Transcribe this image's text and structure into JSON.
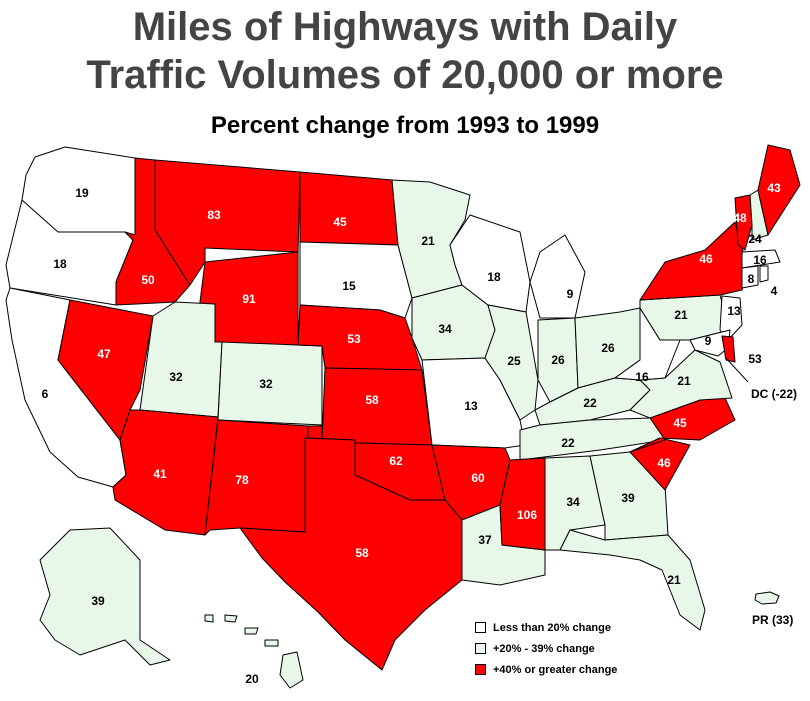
{
  "title_line1": "Miles of Highways with Daily",
  "title_line2": "Traffic Volumes of 20,000 or more",
  "subtitle": "Percent change from 1993 to 1999",
  "colors": {
    "low": "#ffffff",
    "mid": "#e8f8e8",
    "high": "#ff0000"
  },
  "legend": [
    {
      "category": "low",
      "label": "Less than 20% change"
    },
    {
      "category": "mid",
      "label": "+20%  - 39%  change"
    },
    {
      "category": "high",
      "label": "+40%  or greater change"
    }
  ],
  "states": [
    {
      "name": "Washington",
      "value": "19",
      "category": "low"
    },
    {
      "name": "Oregon",
      "value": "18",
      "category": "low"
    },
    {
      "name": "California",
      "value": "6",
      "category": "low"
    },
    {
      "name": "Idaho",
      "value": "50",
      "category": "high"
    },
    {
      "name": "Nevada",
      "value": "47",
      "category": "high"
    },
    {
      "name": "Montana",
      "value": "83",
      "category": "high"
    },
    {
      "name": "Wyoming",
      "value": "91",
      "category": "high"
    },
    {
      "name": "Utah",
      "value": "32",
      "category": "mid"
    },
    {
      "name": "Arizona",
      "value": "41",
      "category": "high"
    },
    {
      "name": "Colorado",
      "value": "32",
      "category": "mid"
    },
    {
      "name": "New Mexico",
      "value": "78",
      "category": "high"
    },
    {
      "name": "North Dakota",
      "value": "45",
      "category": "high"
    },
    {
      "name": "South Dakota",
      "value": "15",
      "category": "low"
    },
    {
      "name": "Nebraska",
      "value": "53",
      "category": "high"
    },
    {
      "name": "Kansas",
      "value": "58",
      "category": "high"
    },
    {
      "name": "Oklahoma",
      "value": "62",
      "category": "high"
    },
    {
      "name": "Texas",
      "value": "58",
      "category": "high"
    },
    {
      "name": "Minnesota",
      "value": "21",
      "category": "mid"
    },
    {
      "name": "Iowa",
      "value": "34",
      "category": "mid"
    },
    {
      "name": "Missouri",
      "value": "13",
      "category": "low"
    },
    {
      "name": "Arkansas",
      "value": "60",
      "category": "high"
    },
    {
      "name": "Louisiana",
      "value": "37",
      "category": "mid"
    },
    {
      "name": "Wisconsin",
      "value": "18",
      "category": "low"
    },
    {
      "name": "Illinois",
      "value": "25",
      "category": "mid"
    },
    {
      "name": "Michigan",
      "value": "9",
      "category": "low"
    },
    {
      "name": "Indiana",
      "value": "26",
      "category": "mid"
    },
    {
      "name": "Ohio",
      "value": "26",
      "category": "mid"
    },
    {
      "name": "Kentucky",
      "value": "22",
      "category": "mid"
    },
    {
      "name": "Tennessee",
      "value": "22",
      "category": "mid"
    },
    {
      "name": "Mississippi",
      "value": "106",
      "category": "high"
    },
    {
      "name": "Alabama",
      "value": "34",
      "category": "mid"
    },
    {
      "name": "Georgia",
      "value": "39",
      "category": "mid"
    },
    {
      "name": "Florida",
      "value": "21",
      "category": "mid"
    },
    {
      "name": "South Carolina",
      "value": "46",
      "category": "high"
    },
    {
      "name": "North Carolina",
      "value": "45",
      "category": "high"
    },
    {
      "name": "Virginia",
      "value": "21",
      "category": "mid"
    },
    {
      "name": "West Virginia",
      "value": "16",
      "category": "low"
    },
    {
      "name": "Pennsylvania",
      "value": "21",
      "category": "mid"
    },
    {
      "name": "New York",
      "value": "46",
      "category": "high"
    },
    {
      "name": "New Jersey",
      "value": "13",
      "category": "low"
    },
    {
      "name": "Maryland",
      "value": "9",
      "category": "low"
    },
    {
      "name": "Delaware",
      "value": "53",
      "category": "high"
    },
    {
      "name": "Vermont",
      "value": "48",
      "category": "high"
    },
    {
      "name": "New Hampshire",
      "value": "24",
      "category": "mid"
    },
    {
      "name": "Maine",
      "value": "43",
      "category": "high"
    },
    {
      "name": "Massachusetts",
      "value": "16",
      "category": "low"
    },
    {
      "name": "Connecticut",
      "value": "8",
      "category": "low"
    },
    {
      "name": "Rhode Island",
      "value": "4",
      "category": "low"
    },
    {
      "name": "Alaska",
      "value": "39",
      "category": "mid"
    },
    {
      "name": "Hawaii",
      "value": "20",
      "category": "mid"
    }
  ],
  "dc_label": "DC (-22)",
  "pr_label": "PR (33)"
}
